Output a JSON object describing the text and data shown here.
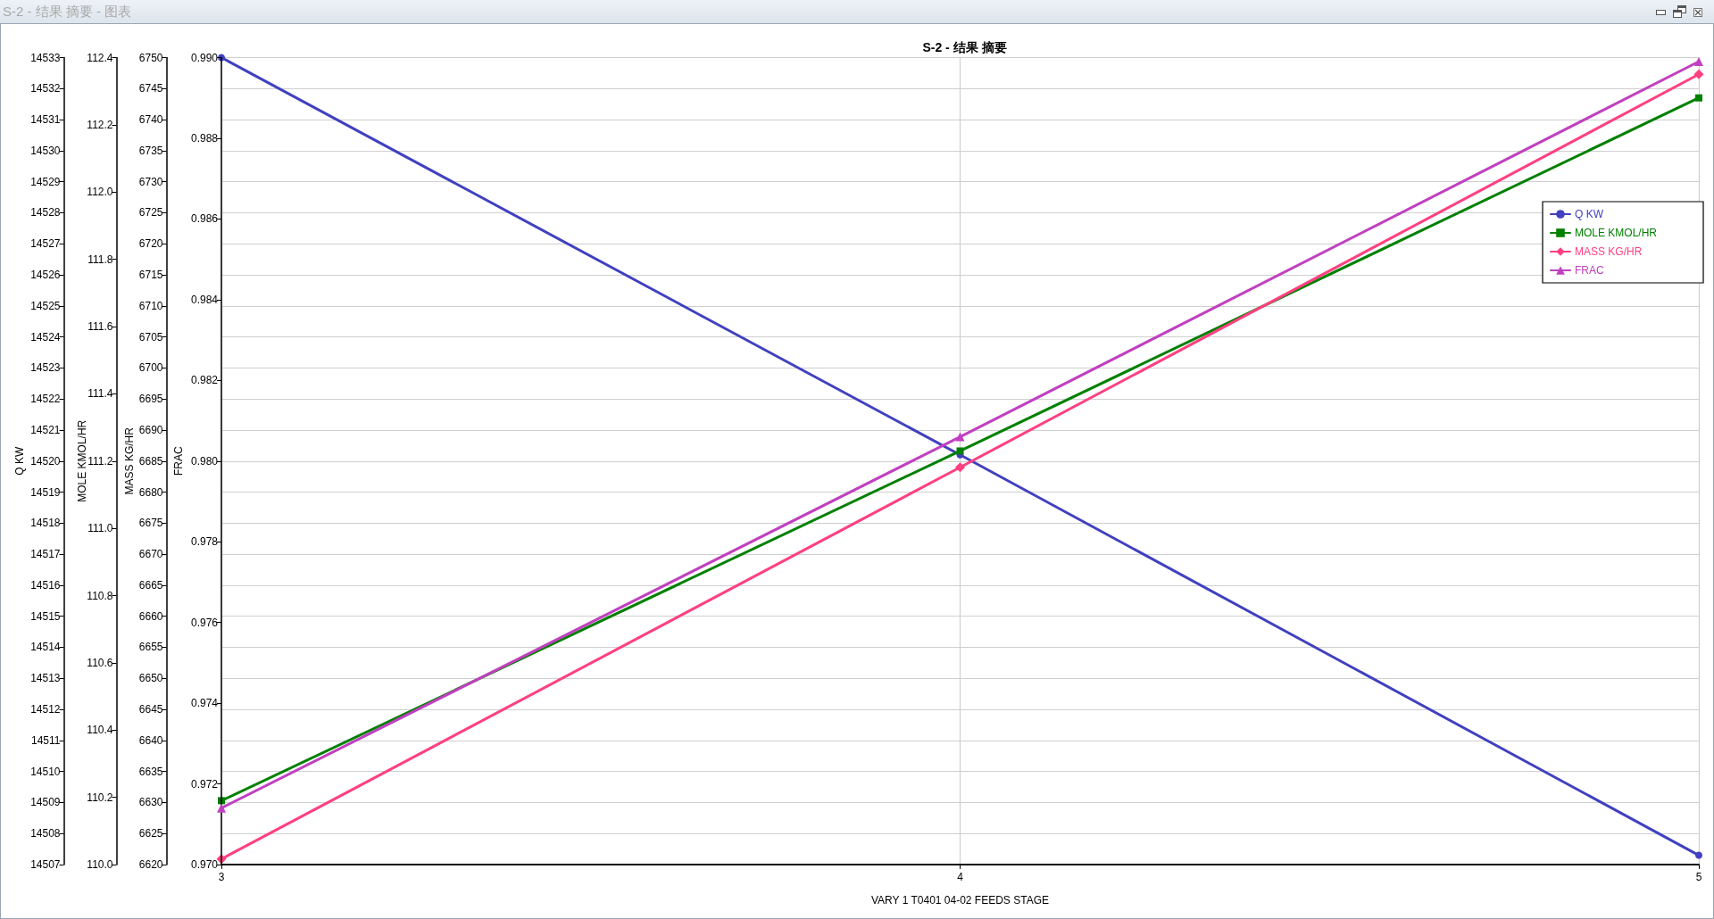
{
  "chart_data": [
    {
      "type": "line",
      "title": "S-2 - 结果 摘要",
      "xlabel": "VARY 1 T0401 04-02 FEEDS STAGE",
      "ylabel": "Q KW",
      "y2label": "MOLE KMOL/HR",
      "y3label": "MASS KG/HR",
      "x": [
        3,
        4,
        5
      ],
      "xlim": [
        3,
        5
      ],
      "xticks": [
        3,
        4,
        5
      ],
      "ylim": [
        14507,
        14533
      ],
      "yticks": [
        14507,
        14508,
        14509,
        14510,
        14511,
        14512,
        14513,
        14514,
        14515,
        14516,
        14517,
        14518,
        14519,
        14520,
        14521,
        14522,
        14523,
        14524,
        14525,
        14526,
        14527,
        14528,
        14529,
        14530,
        14531,
        14532,
        14533
      ],
      "y2lim": [
        110,
        112.4
      ],
      "y2ticks": [
        {
          "value": 110,
          "label": "110.0"
        },
        110.2,
        110.4,
        110.6,
        110.8,
        {
          "value": 111,
          "label": "111.0"
        },
        111.2,
        111.4,
        111.6,
        111.8,
        {
          "value": 112,
          "label": "112.0"
        },
        112.2,
        112.4
      ],
      "y3lim": [
        6620,
        6750
      ],
      "y3ticks": [
        6620,
        6625,
        6630,
        6635,
        6640,
        6645,
        6650,
        6655,
        6660,
        6665,
        6670,
        6675,
        6680,
        6685,
        6690,
        6695,
        6700,
        6705,
        6710,
        6715,
        6720,
        6725,
        6730,
        6735,
        6740,
        6745,
        6750
      ],
      "series": [
        {
          "name": "Q KW",
          "color": "#4040c0",
          "marker": "circle",
          "values": [
            14533.0,
            14520.2,
            14507.3
          ]
        },
        {
          "name": "MOLE KMOL/HR",
          "color": "#008000",
          "marker": "square",
          "axis": "y2",
          "values": [
            110.19,
            111.23,
            112.28
          ]
        },
        {
          "name": "MASS KG/HR",
          "color": "#ff4080",
          "marker": "diamond",
          "axis": "y3",
          "values": [
            6620.9,
            6684.0,
            6747.3
          ]
        }
      ],
      "grid": true,
      "legend": "top right",
      "line_style": "solid",
      "annotations": [
        "S-2 - 结果 摘要 - 图表"
      ]
    },
    {
      "type": "line",
      "ylabel": "FRAC",
      "x": [
        3,
        4,
        5
      ],
      "xlim": [
        3,
        5
      ],
      "xticks": [
        3,
        4,
        5
      ],
      "ylim": [
        0.97,
        0.99
      ],
      "yticks": [
        {
          "value": 0.97,
          "label": "0.970"
        },
        0.972,
        0.974,
        0.976,
        0.978,
        {
          "value": 0.98,
          "label": "0.980"
        },
        0.982,
        0.984,
        0.986,
        0.988,
        {
          "value": 0.99,
          "label": "0.990"
        }
      ],
      "series": [
        {
          "name": "FRAC",
          "color": "#c040c0",
          "marker": "triangle",
          "values": [
            0.9714,
            0.9806,
            0.9899
          ]
        }
      ],
      "legend": "top right",
      "tick_labels": "y",
      "line_style": "solid"
    }
  ]
}
